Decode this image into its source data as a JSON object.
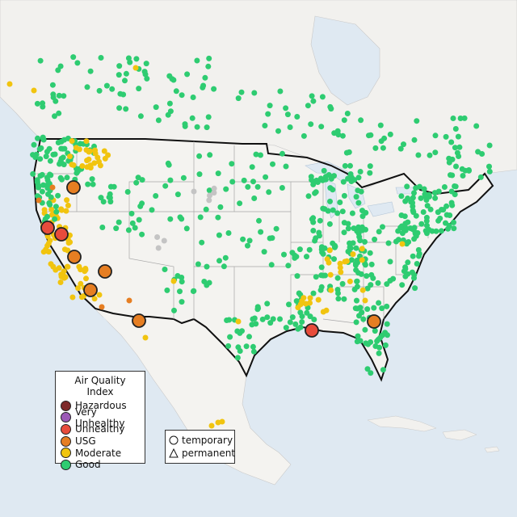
{
  "legend_aqi": {
    "title": "Air Quality Index",
    "items": [
      {
        "label": "Hazardous",
        "color": "#7e2a2a"
      },
      {
        "label": "Very Unhealthy",
        "color": "#9b59b6"
      },
      {
        "label": "Unhealthy",
        "color": "#e74c3c"
      },
      {
        "label": "USG",
        "color": "#e67e22"
      },
      {
        "label": "Moderate",
        "color": "#f1c40f"
      },
      {
        "label": "Good",
        "color": "#2ecc71"
      }
    ]
  },
  "legend_shape": {
    "items": [
      {
        "label": "temporary",
        "shape": "circle-icon"
      },
      {
        "label": "permanent",
        "shape": "triangle-icon"
      }
    ]
  },
  "colors": {
    "water": "#dfe9f2",
    "land": "#f2f1ee",
    "us_land": "#f4f3f0",
    "border": "#111111"
  }
}
